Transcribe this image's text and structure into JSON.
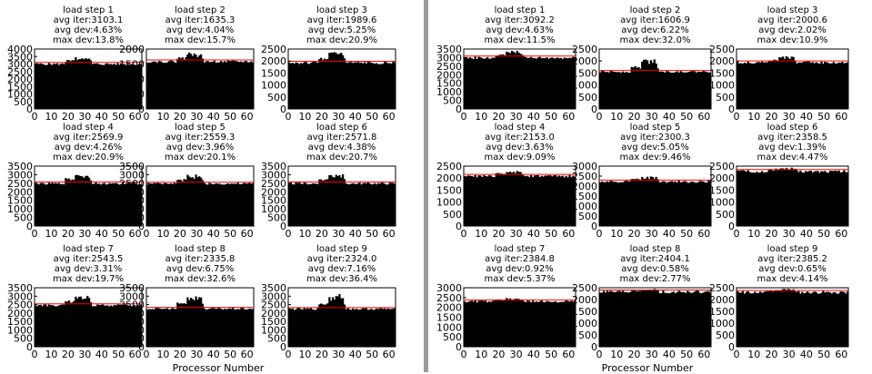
{
  "xlabel": "Processor Number",
  "colors": {
    "bar": "#000000",
    "avg_line": "#ff0000",
    "divider": "#9a9a9a"
  },
  "chart_data": [
    {
      "type": "bar",
      "panel": "left",
      "title": "load step 1",
      "stats": [
        "avg iter:3103.1",
        "avg dev:4.63%",
        "max dev:13.8%"
      ],
      "avg": 3103.1,
      "ylim": [
        0,
        4000
      ],
      "yticks": [
        0,
        500,
        1000,
        1500,
        2000,
        2500,
        3000,
        3500,
        4000
      ],
      "xticks": [
        0,
        10,
        20,
        30,
        40,
        50,
        60
      ],
      "xlim": [
        0,
        64
      ],
      "peak": 3530
    },
    {
      "type": "bar",
      "panel": "left",
      "title": "load step 2",
      "stats": [
        "avg iter:1635.3",
        "avg dev:4.04%",
        "max dev:15.7%"
      ],
      "avg": 1635.3,
      "ylim": [
        0,
        2000
      ],
      "yticks": [
        0,
        500,
        1000,
        1500,
        2000
      ],
      "xticks": [
        0,
        10,
        20,
        30,
        40,
        50,
        60
      ],
      "xlim": [
        0,
        64
      ],
      "peak": 1890
    },
    {
      "type": "bar",
      "panel": "left",
      "title": "load step 3",
      "stats": [
        "avg iter:1989.6",
        "avg dev:5.25%",
        "max dev:20.9%"
      ],
      "avg": 1989.6,
      "ylim": [
        0,
        2500
      ],
      "yticks": [
        0,
        500,
        1000,
        1500,
        2000,
        2500
      ],
      "xticks": [
        0,
        10,
        20,
        30,
        40,
        50,
        60
      ],
      "xlim": [
        0,
        64
      ],
      "peak": 2405
    },
    {
      "type": "bar",
      "panel": "left",
      "title": "load step 4",
      "stats": [
        "avg iter:2569.9",
        "avg dev:4.26%",
        "max dev:20.9%"
      ],
      "avg": 2569.9,
      "ylim": [
        0,
        3500
      ],
      "yticks": [
        0,
        500,
        1000,
        1500,
        2000,
        2500,
        3000,
        3500
      ],
      "xticks": [
        0,
        10,
        20,
        30,
        40,
        50,
        60
      ],
      "xlim": [
        0,
        64
      ],
      "peak": 3107
    },
    {
      "type": "bar",
      "panel": "left",
      "title": "load step 5",
      "stats": [
        "avg iter:2559.3",
        "avg dev:3.96%",
        "max dev:20.1%"
      ],
      "avg": 2559.3,
      "ylim": [
        0,
        3500
      ],
      "yticks": [
        0,
        500,
        1000,
        1500,
        2000,
        2500,
        3000,
        3500
      ],
      "xticks": [
        0,
        10,
        20,
        30,
        40,
        50,
        60
      ],
      "xlim": [
        0,
        64
      ],
      "peak": 3073
    },
    {
      "type": "bar",
      "panel": "left",
      "title": "load step 6",
      "stats": [
        "avg iter:2571.8",
        "avg dev:4.38%",
        "max dev:20.7%"
      ],
      "avg": 2571.8,
      "ylim": [
        0,
        3500
      ],
      "yticks": [
        0,
        500,
        1000,
        1500,
        2000,
        2500,
        3000,
        3500
      ],
      "xticks": [
        0,
        10,
        20,
        30,
        40,
        50,
        60
      ],
      "xlim": [
        0,
        64
      ],
      "peak": 3104
    },
    {
      "type": "bar",
      "panel": "left",
      "title": "load step 7",
      "stats": [
        "avg iter:2543.5",
        "avg dev:3.31%",
        "max dev:19.7%"
      ],
      "avg": 2543.5,
      "ylim": [
        0,
        3500
      ],
      "yticks": [
        0,
        500,
        1000,
        1500,
        2000,
        2500,
        3000,
        3500
      ],
      "xticks": [
        0,
        10,
        20,
        30,
        40,
        50,
        60
      ],
      "xlim": [
        0,
        64
      ],
      "peak": 3045
    },
    {
      "type": "bar",
      "panel": "left",
      "title": "load step 8",
      "stats": [
        "avg iter:2335.8",
        "avg dev:6.75%",
        "max dev:32.6%"
      ],
      "avg": 2335.8,
      "ylim": [
        0,
        3500
      ],
      "yticks": [
        0,
        500,
        1000,
        1500,
        2000,
        2500,
        3000,
        3500
      ],
      "xticks": [
        0,
        10,
        20,
        30,
        40,
        50,
        60
      ],
      "xlim": [
        0,
        64
      ],
      "peak": 3097
    },
    {
      "type": "bar",
      "panel": "left",
      "title": "load step 9",
      "stats": [
        "avg iter:2324.0",
        "avg dev:7.16%",
        "max dev:36.4%"
      ],
      "avg": 2324.0,
      "ylim": [
        0,
        3500
      ],
      "yticks": [
        0,
        500,
        1000,
        1500,
        2000,
        2500,
        3000,
        3500
      ],
      "xticks": [
        0,
        10,
        20,
        30,
        40,
        50,
        60
      ],
      "xlim": [
        0,
        64
      ],
      "peak": 3170
    },
    {
      "type": "bar",
      "panel": "right",
      "title": "load step 1",
      "stats": [
        "avg iter:3092.2",
        "avg dev:4.63%",
        "max dev:11.5%"
      ],
      "avg": 3092.2,
      "ylim": [
        0,
        3500
      ],
      "yticks": [
        0,
        500,
        1000,
        1500,
        2000,
        2500,
        3000,
        3500
      ],
      "xticks": [
        0,
        10,
        20,
        30,
        40,
        50,
        60
      ],
      "xlim": [
        0,
        64
      ],
      "peak": 3448
    },
    {
      "type": "bar",
      "panel": "right",
      "title": "load step 2",
      "stats": [
        "avg iter:1606.9",
        "avg dev:6.22%",
        "max dev:32.0%"
      ],
      "avg": 1606.9,
      "ylim": [
        0,
        2500
      ],
      "yticks": [
        0,
        500,
        1000,
        1500,
        2000,
        2500
      ],
      "xticks": [
        0,
        10,
        20,
        30,
        40,
        50,
        60
      ],
      "xlim": [
        0,
        64
      ],
      "peak": 2121
    },
    {
      "type": "bar",
      "panel": "right",
      "title": "load step 3",
      "stats": [
        "avg iter:2000.6",
        "avg dev:2.02%",
        "max dev:10.9%"
      ],
      "avg": 2000.6,
      "ylim": [
        0,
        2500
      ],
      "yticks": [
        0,
        500,
        1000,
        1500,
        2000,
        2500
      ],
      "xticks": [
        0,
        10,
        20,
        30,
        40,
        50,
        60
      ],
      "xlim": [
        0,
        64
      ],
      "peak": 2219
    },
    {
      "type": "bar",
      "panel": "right",
      "title": "load step 4",
      "stats": [
        "avg iter:2153.0",
        "avg dev:3.63%",
        "max dev:9.09%"
      ],
      "avg": 2153.0,
      "ylim": [
        0,
        2500
      ],
      "yticks": [
        0,
        500,
        1000,
        1500,
        2000,
        2500
      ],
      "xticks": [
        0,
        10,
        20,
        30,
        40,
        50,
        60
      ],
      "xlim": [
        0,
        64
      ],
      "peak": 2349
    },
    {
      "type": "bar",
      "panel": "right",
      "title": "load step 5",
      "stats": [
        "avg iter:2300.3",
        "avg dev:5.05%",
        "max dev:9.46%"
      ],
      "avg": 2300.3,
      "ylim": [
        0,
        3000
      ],
      "yticks": [
        0,
        500,
        1000,
        1500,
        2000,
        2500,
        3000
      ],
      "xticks": [
        0,
        10,
        20,
        30,
        40,
        50,
        60
      ],
      "xlim": [
        0,
        64
      ],
      "peak": 2518
    },
    {
      "type": "bar",
      "panel": "right",
      "title": "load step 6",
      "stats": [
        "avg iter:2358.5",
        "avg dev:1.39%",
        "max dev:4.47%"
      ],
      "avg": 2358.5,
      "ylim": [
        0,
        2500
      ],
      "yticks": [
        0,
        500,
        1000,
        1500,
        2000,
        2500
      ],
      "xticks": [
        0,
        10,
        20,
        30,
        40,
        50,
        60
      ],
      "xlim": [
        0,
        64
      ],
      "peak": 2464
    },
    {
      "type": "bar",
      "panel": "right",
      "title": "load step 7",
      "stats": [
        "avg iter:2384.8",
        "avg dev:0.92%",
        "max dev:5.37%"
      ],
      "avg": 2384.8,
      "ylim": [
        0,
        3000
      ],
      "yticks": [
        0,
        500,
        1000,
        1500,
        2000,
        2500,
        3000
      ],
      "xticks": [
        0,
        10,
        20,
        30,
        40,
        50,
        60
      ],
      "xlim": [
        0,
        64
      ],
      "peak": 2513
    },
    {
      "type": "bar",
      "panel": "right",
      "title": "load step 8",
      "stats": [
        "avg iter:2404.1",
        "avg dev:0.58%",
        "max dev:2.77%"
      ],
      "avg": 2404.1,
      "ylim": [
        0,
        2500
      ],
      "yticks": [
        0,
        500,
        1000,
        1500,
        2000,
        2500
      ],
      "xticks": [
        0,
        10,
        20,
        30,
        40,
        50,
        60
      ],
      "xlim": [
        0,
        64
      ],
      "peak": 2471
    },
    {
      "type": "bar",
      "panel": "right",
      "title": "load step 9",
      "stats": [
        "avg iter:2385.2",
        "avg dev:0.65%",
        "max dev:4.14%"
      ],
      "avg": 2385.2,
      "ylim": [
        0,
        2500
      ],
      "yticks": [
        0,
        500,
        1000,
        1500,
        2000,
        2500
      ],
      "xticks": [
        0,
        10,
        20,
        30,
        40,
        50,
        60
      ],
      "xlim": [
        0,
        64
      ],
      "peak": 2484
    }
  ]
}
